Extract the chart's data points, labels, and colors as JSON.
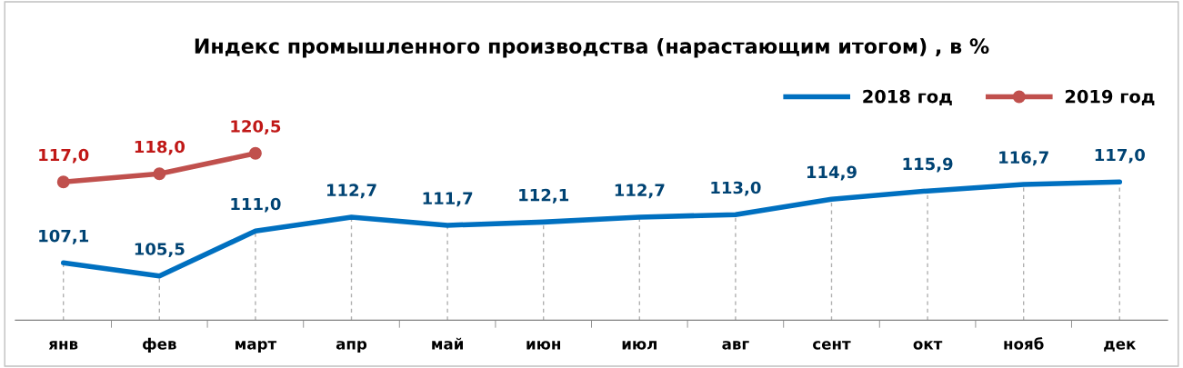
{
  "chart_data": {
    "type": "line",
    "title": "Индекс промышленного производства (нарастающим итогом) , в %",
    "categories": [
      "янв",
      "фев",
      "март",
      "апр",
      "май",
      "июн",
      "июл",
      "авг",
      "сент",
      "окт",
      "нояб",
      "дек"
    ],
    "series": [
      {
        "name": "2018 год",
        "color": "#0070c0",
        "marker": "none",
        "values": [
          107.1,
          105.5,
          111.0,
          112.7,
          111.7,
          112.1,
          112.7,
          113.0,
          114.9,
          115.9,
          116.7,
          117.0
        ],
        "value_labels": [
          "107,1",
          "105,5",
          "111,0",
          "112,7",
          "111,7",
          "112,1",
          "112,7",
          "113,0",
          "114,9",
          "115,9",
          "116,7",
          "117,0"
        ]
      },
      {
        "name": "2019 год",
        "color": "#c0504d",
        "marker": "circle",
        "values": [
          117.0,
          118.0,
          120.5,
          null,
          null,
          null,
          null,
          null,
          null,
          null,
          null,
          null
        ],
        "value_labels": [
          "117,0",
          "118,0",
          "120,5",
          null,
          null,
          null,
          null,
          null,
          null,
          null,
          null,
          null
        ]
      }
    ],
    "grid": "x",
    "legend": "top right",
    "line_style": "solid"
  }
}
